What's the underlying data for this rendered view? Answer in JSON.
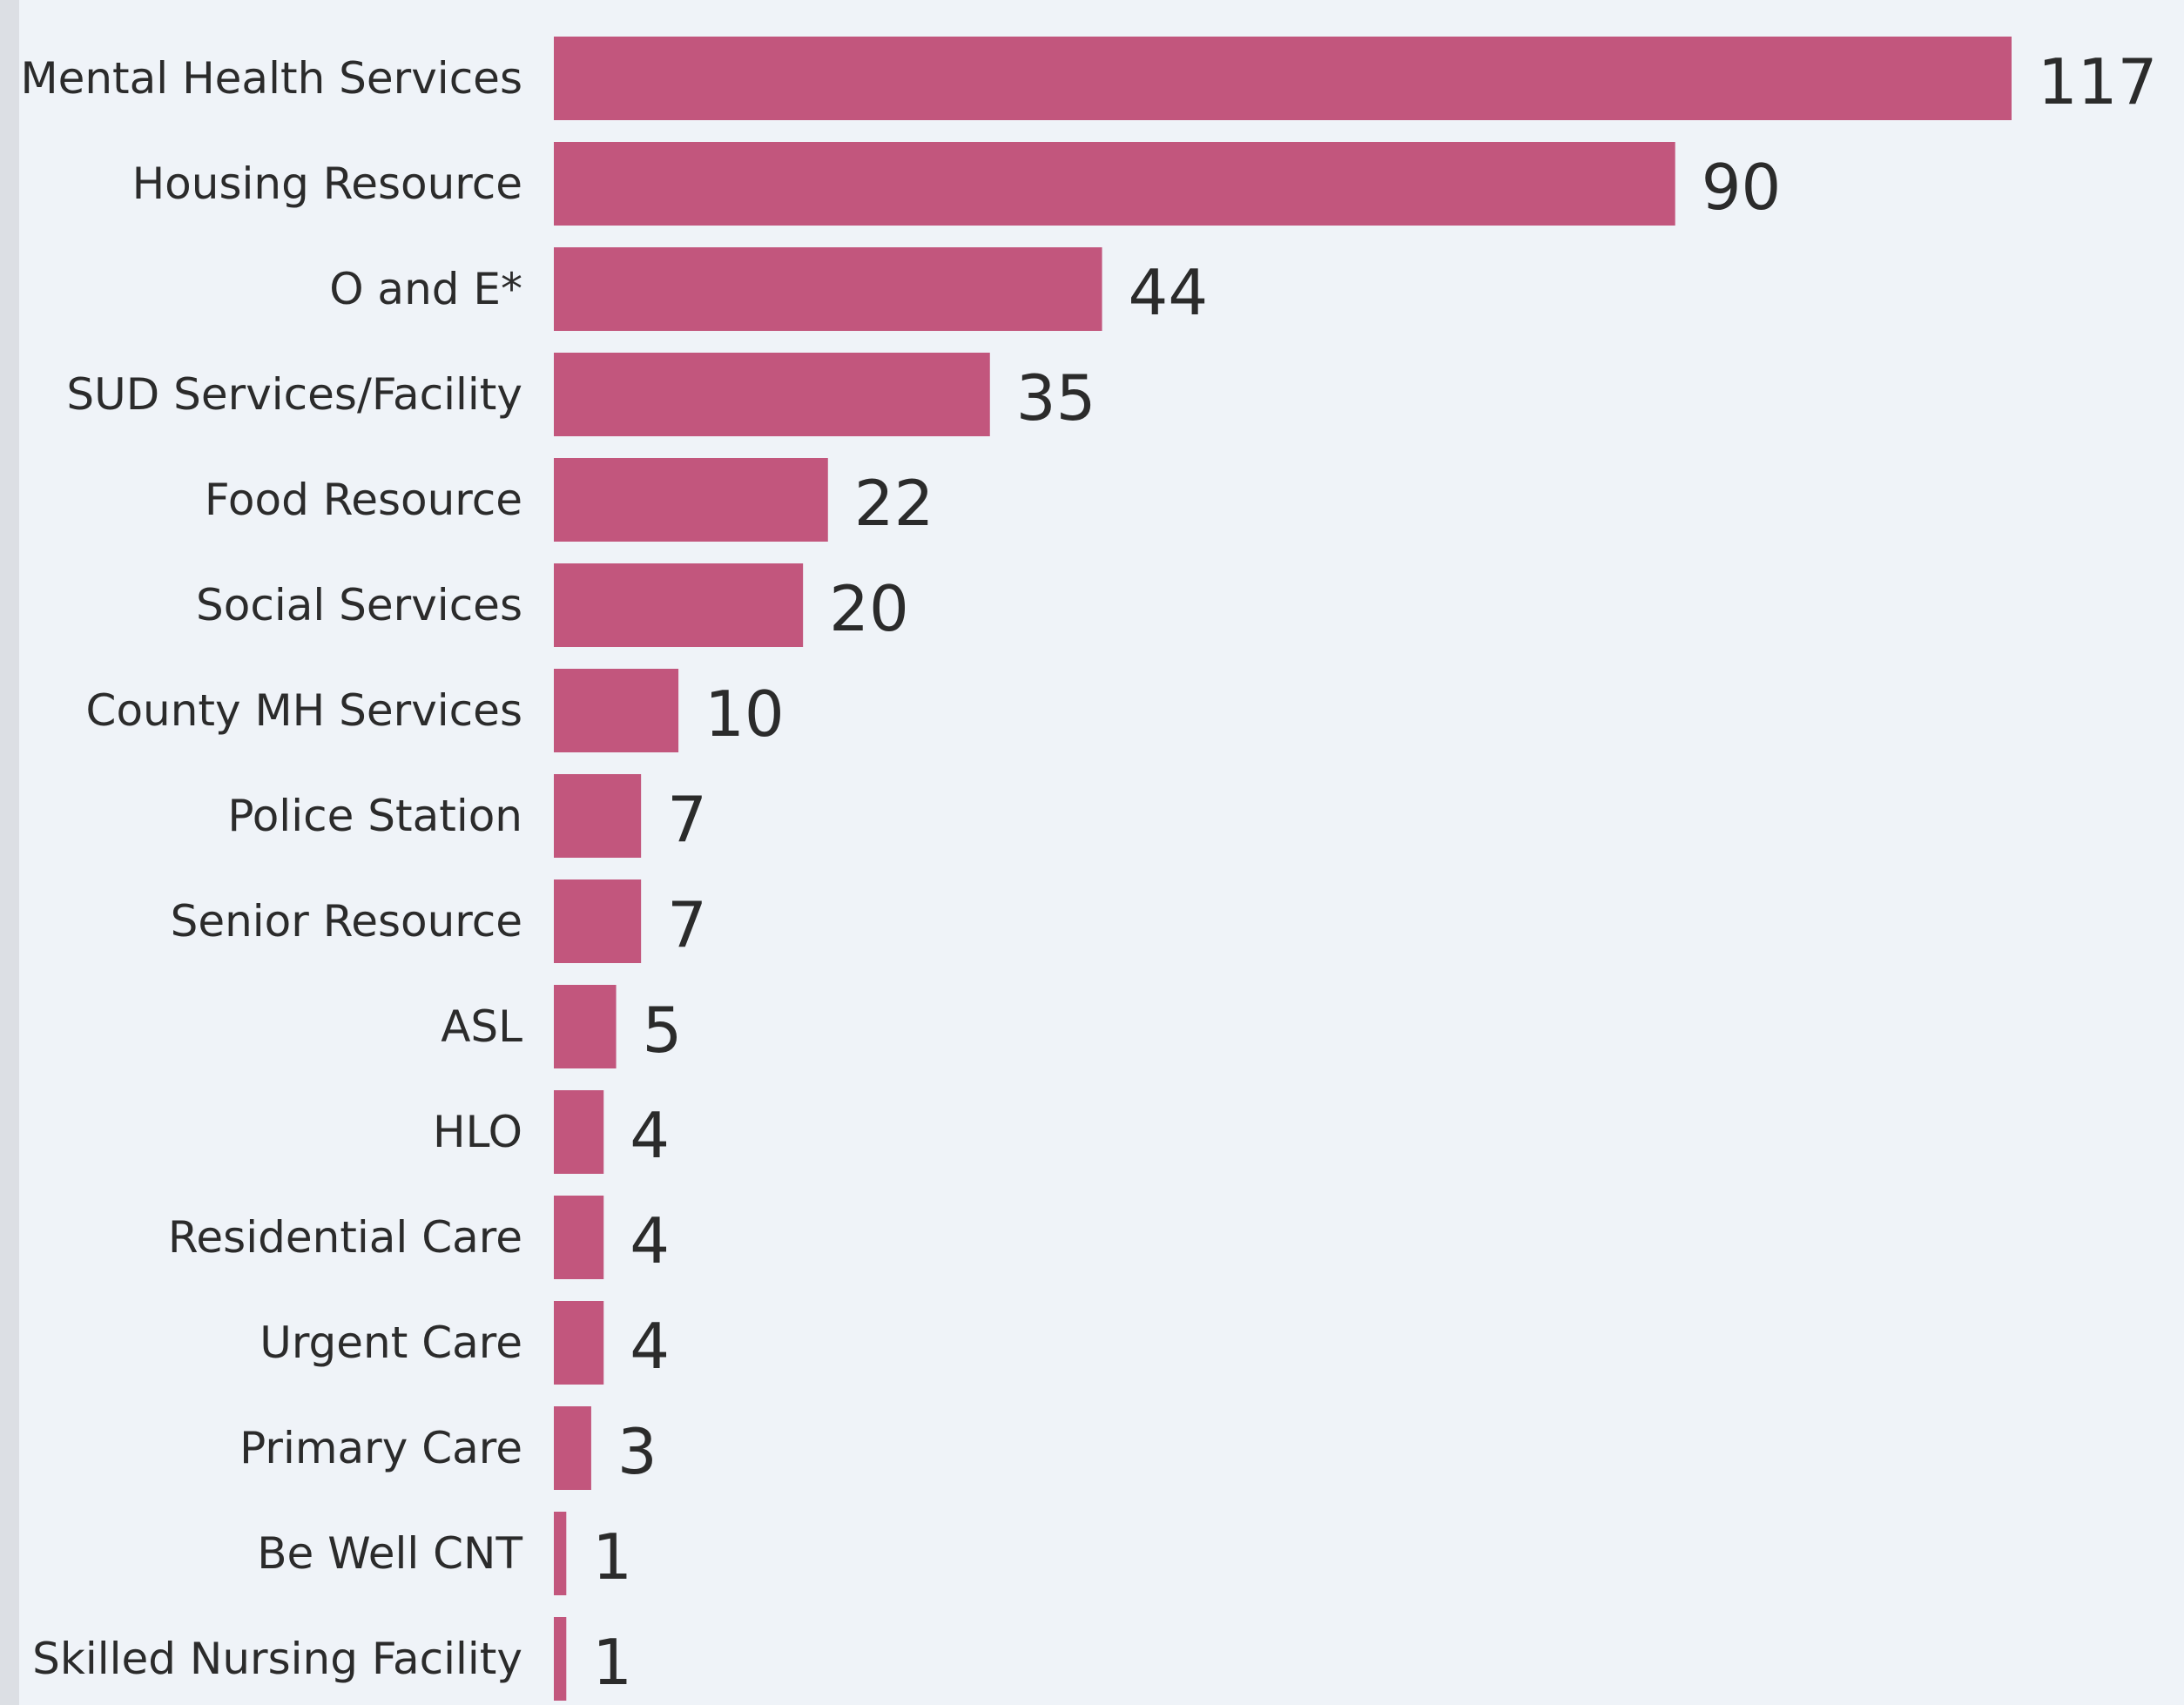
{
  "chart_data": {
    "type": "bar",
    "orientation": "horizontal",
    "categories": [
      "Mental Health Services",
      "Housing Resource",
      "O and E*",
      "SUD Services/Facility",
      "Food Resource",
      "Social Services",
      "County MH Services",
      "Police Station",
      "Senior Resource",
      "ASL",
      "HLO",
      "Residential Care",
      "Urgent Care",
      "Primary Care",
      "Be Well CNT",
      "Skilled Nursing Facility"
    ],
    "values": [
      117,
      90,
      44,
      35,
      22,
      20,
      10,
      7,
      7,
      5,
      4,
      4,
      4,
      3,
      1,
      1
    ],
    "title": "",
    "xlabel": "",
    "ylabel": "",
    "xlim": [
      0,
      117
    ],
    "grid": false,
    "data_labels": true,
    "bar_color": "#c2567d",
    "background_color": "#eff3f8",
    "text_color": "#2b2b2b"
  }
}
